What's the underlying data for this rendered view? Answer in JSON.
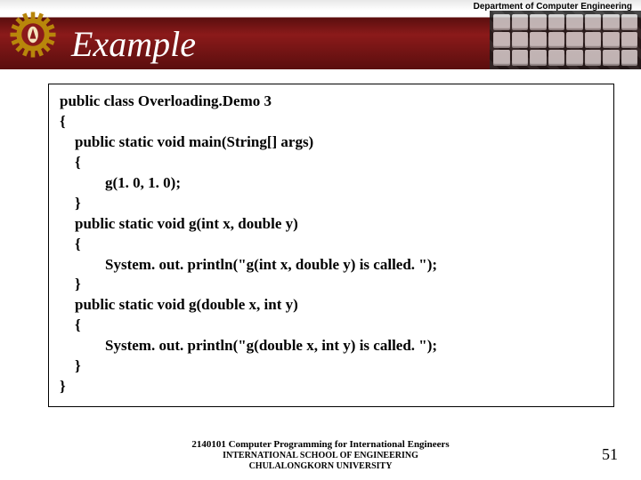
{
  "header": {
    "department": "Department of Computer Engineering",
    "title": "Example",
    "gear_color_outer": "#b8860b",
    "gear_color_inner": "#8b1a1a"
  },
  "code": {
    "lines": [
      "public class Overloading.Demo 3",
      "{",
      "    public static void main(String[] args)",
      "    {",
      "            g(1. 0, 1. 0);",
      "    }",
      "    public static void g(int x, double y)",
      "    {",
      "            System. out. println(\"g(int x, double y) is called. \");",
      "    }",
      "    public static void g(double x, int y)",
      "    {",
      "            System. out. println(\"g(double x, int y) is called. \");",
      "    }",
      "}"
    ]
  },
  "footer": {
    "line1": "2140101 Computer Programming for International Engineers",
    "line2": "INTERNATIONAL SCHOOL OF ENGINEERING",
    "line3": "CHULALONGKORN UNIVERSITY"
  },
  "page_number": "51"
}
